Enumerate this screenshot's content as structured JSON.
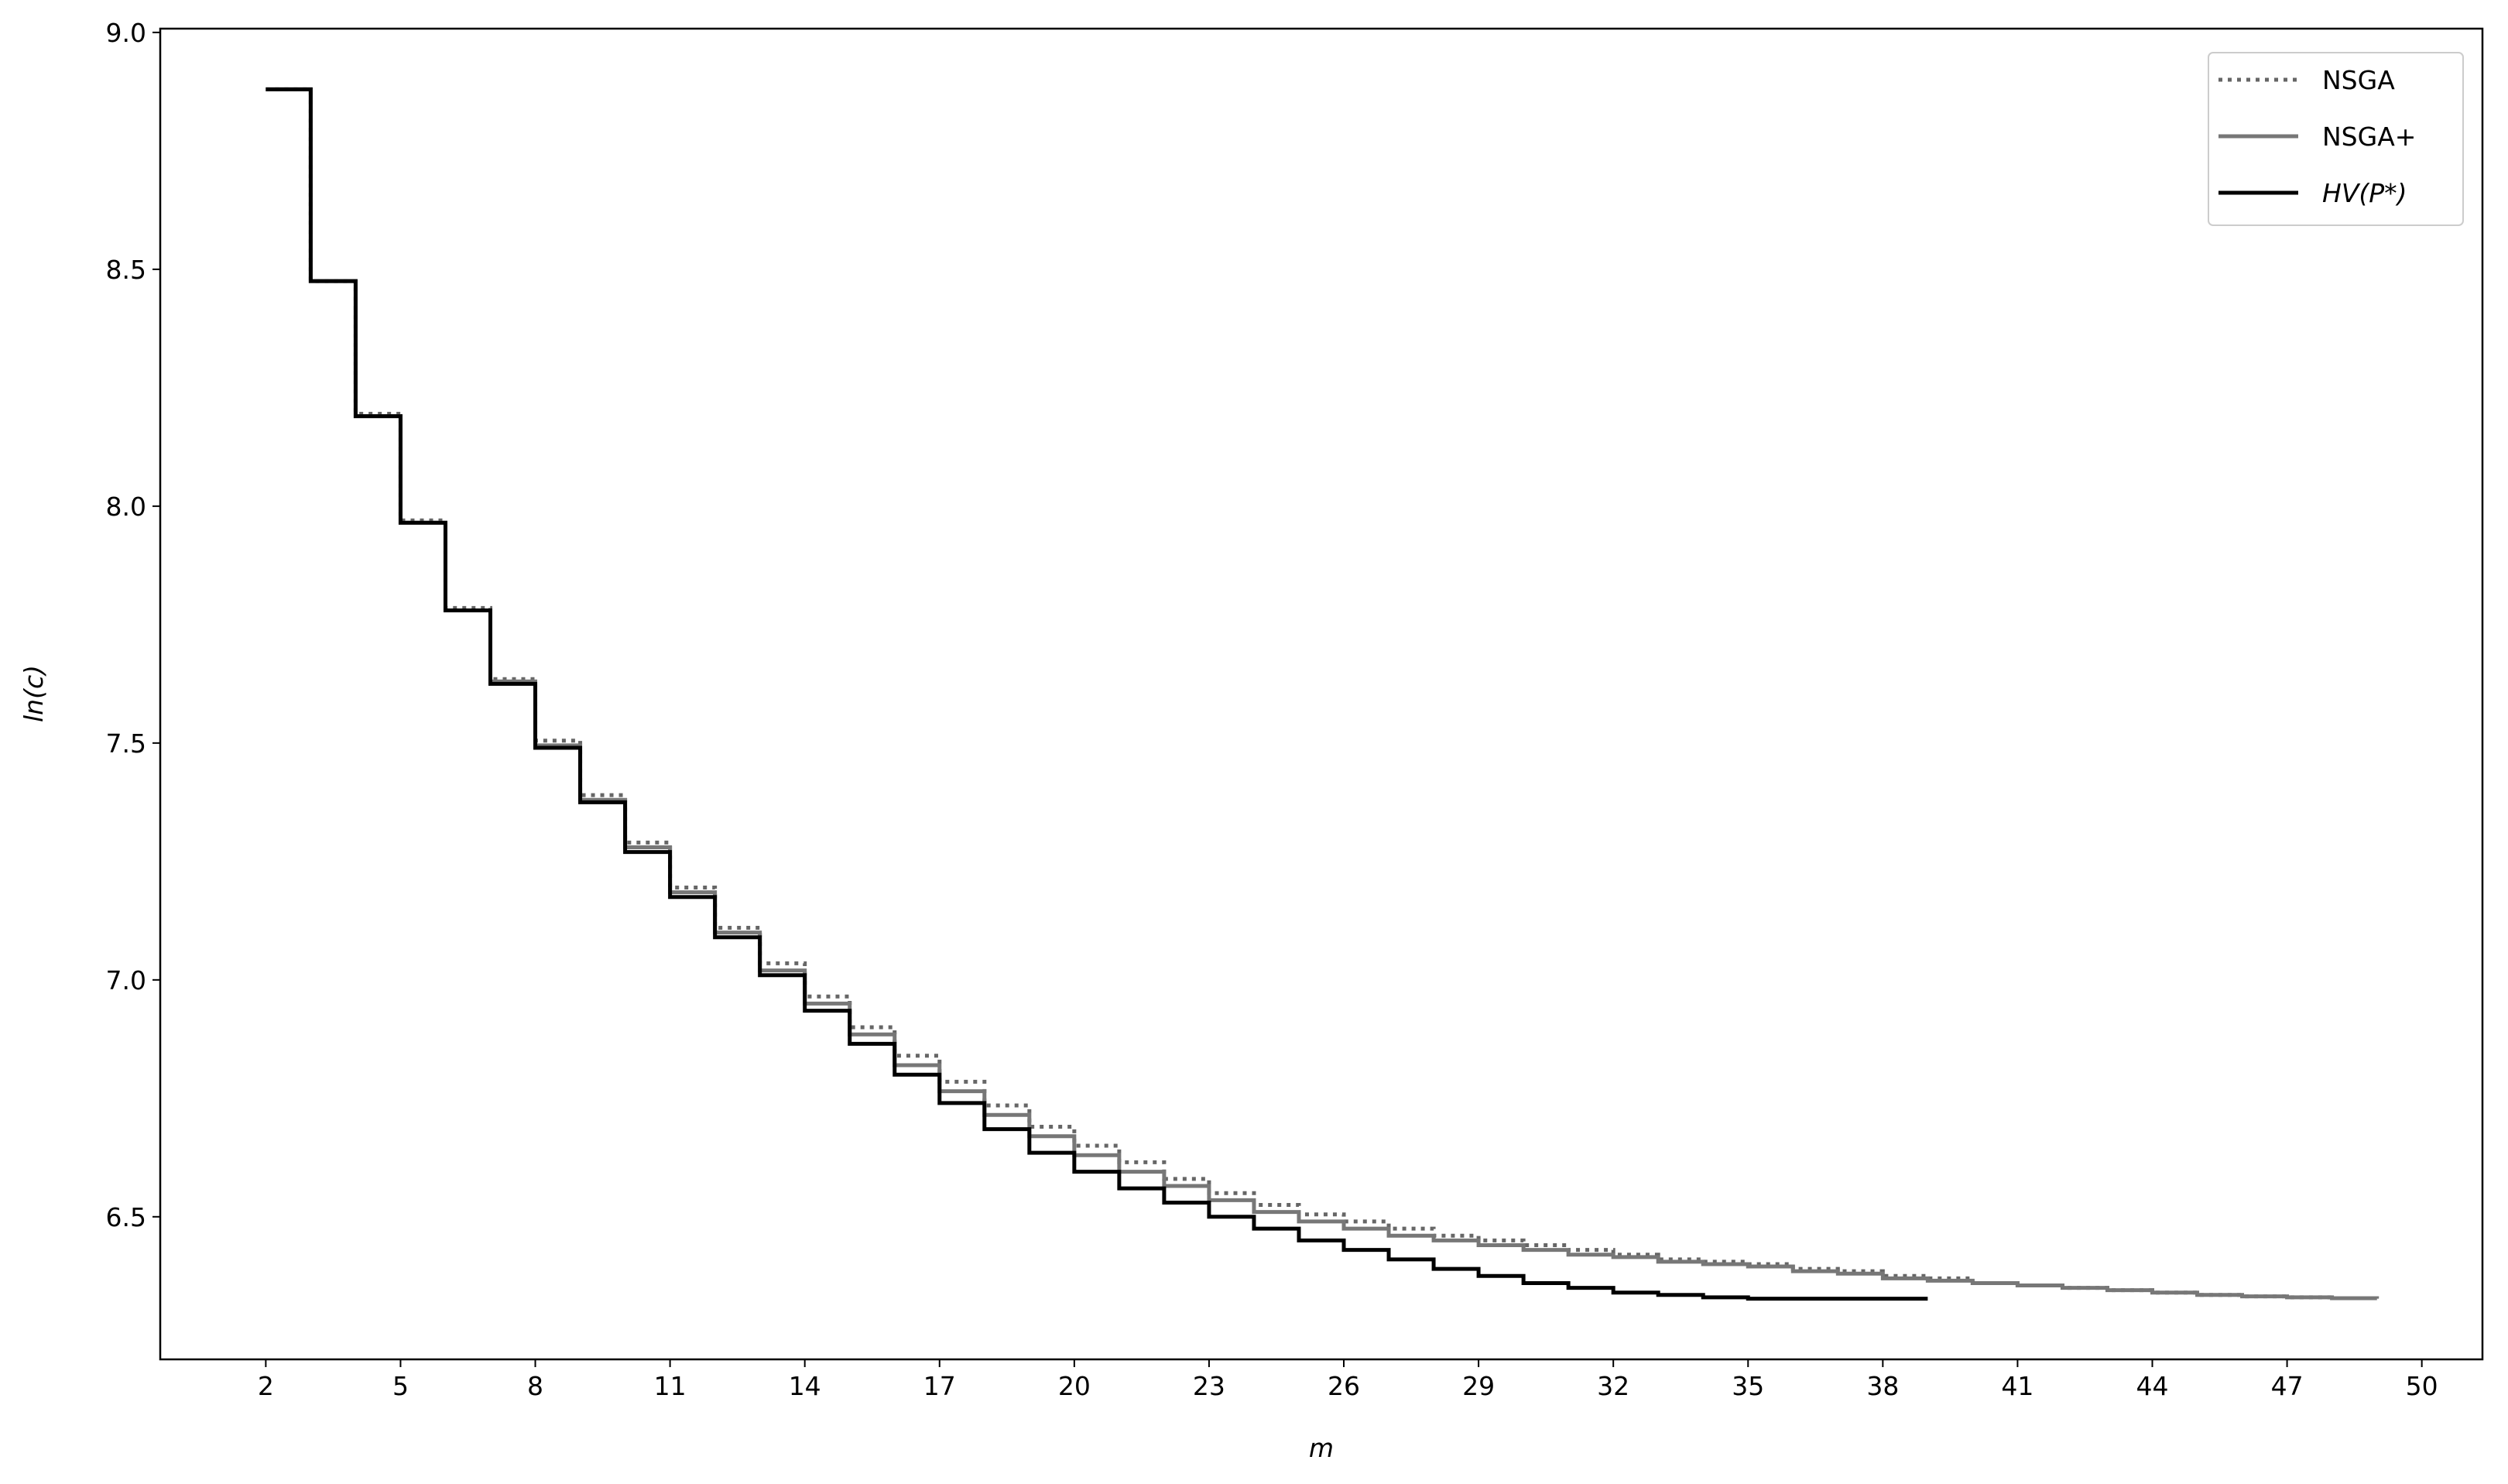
{
  "chart_data": {
    "type": "line",
    "drawstyle": "steps-post",
    "x_label": "m",
    "y_label": "ln(c)",
    "x": [
      2,
      3,
      4,
      5,
      6,
      7,
      8,
      9,
      10,
      11,
      12,
      13,
      14,
      15,
      16,
      17,
      18,
      19,
      20,
      21,
      22,
      23,
      24,
      25,
      26,
      27,
      28,
      29,
      30,
      31,
      32,
      33,
      34,
      35,
      36,
      37,
      38,
      39,
      40,
      41,
      42,
      43,
      44,
      45,
      46,
      47,
      48,
      49
    ],
    "series": [
      {
        "name": "NSGA",
        "color": "#666666",
        "dash": "dotted",
        "values": [
          8.88,
          8.475,
          8.195,
          7.97,
          7.785,
          7.635,
          7.505,
          7.39,
          7.29,
          7.195,
          7.11,
          7.035,
          6.965,
          6.9,
          6.84,
          6.785,
          6.735,
          6.69,
          6.65,
          6.615,
          6.58,
          6.55,
          6.525,
          6.505,
          6.49,
          6.475,
          6.46,
          6.45,
          6.44,
          6.43,
          6.42,
          6.41,
          6.405,
          6.4,
          6.39,
          6.385,
          6.375,
          6.37,
          6.36,
          6.355,
          6.35,
          6.345,
          6.34,
          6.335,
          6.332,
          6.33,
          6.328,
          6.327
        ]
      },
      {
        "name": "NSGA+",
        "color": "#777777",
        "dash": "solid",
        "values": [
          8.88,
          8.475,
          8.19,
          7.965,
          7.78,
          7.63,
          7.495,
          7.38,
          7.28,
          7.185,
          7.1,
          7.02,
          6.95,
          6.885,
          6.82,
          6.765,
          6.715,
          6.67,
          6.63,
          6.595,
          6.565,
          6.535,
          6.51,
          6.49,
          6.475,
          6.46,
          6.45,
          6.44,
          6.43,
          6.42,
          6.415,
          6.405,
          6.4,
          6.395,
          6.385,
          6.38,
          6.37,
          6.365,
          6.36,
          6.355,
          6.35,
          6.345,
          6.34,
          6.335,
          6.332,
          6.33,
          6.328,
          6.327
        ]
      },
      {
        "name": "HV(P*)",
        "color": "#000000",
        "dash": "solid",
        "values": [
          8.88,
          8.475,
          8.19,
          7.965,
          7.78,
          7.625,
          7.49,
          7.375,
          7.27,
          7.175,
          7.09,
          7.01,
          6.935,
          6.865,
          6.8,
          6.74,
          6.685,
          6.635,
          6.595,
          6.56,
          6.53,
          6.5,
          6.475,
          6.45,
          6.43,
          6.41,
          6.39,
          6.375,
          6.36,
          6.35,
          6.34,
          6.335,
          6.33,
          6.327,
          6.327,
          6.327,
          6.327,
          6.327,
          null,
          null,
          null,
          null,
          null,
          null,
          null,
          null,
          null,
          null
        ]
      }
    ],
    "xlim": [
      -0.35,
      51.35
    ],
    "ylim": [
      6.199,
      9.008
    ],
    "xticks": [
      2,
      5,
      8,
      11,
      14,
      17,
      20,
      23,
      26,
      29,
      32,
      35,
      38,
      41,
      44,
      47,
      50
    ],
    "yticks": [
      6.5,
      {
        "value": 7,
        "label": "7.0"
      },
      7.5,
      {
        "value": 8,
        "label": "8.0"
      },
      8.5,
      {
        "value": 9,
        "label": "9.0"
      }
    ],
    "legend": "upper right"
  }
}
